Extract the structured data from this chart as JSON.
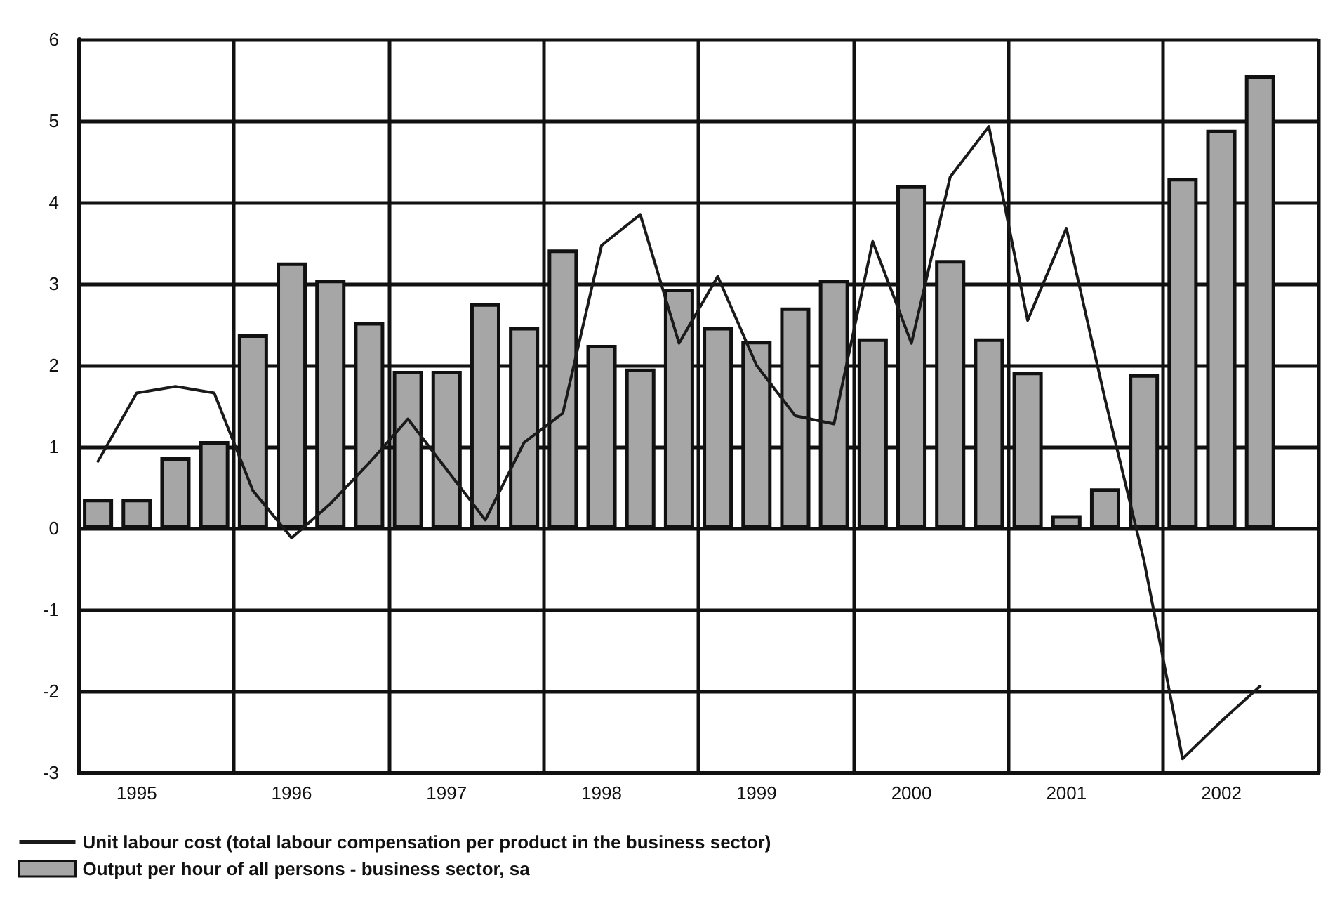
{
  "chart_data": {
    "type": "bar",
    "categories": [
      null,
      "1995",
      null,
      null,
      null,
      "1996",
      null,
      null,
      null,
      "1997",
      null,
      null,
      null,
      "1998",
      null,
      null,
      null,
      "1999",
      null,
      null,
      null,
      "2000",
      null,
      null,
      null,
      "2001",
      null,
      null,
      null,
      "2002",
      null,
      null
    ],
    "series": [
      {
        "type": "line",
        "name": "Unit labour cost (total labour compensation per product in the business sector)",
        "color": "#1a1a1a",
        "values": [
          0.82,
          1.66,
          1.74,
          1.66,
          0.46,
          -0.12,
          0.3,
          0.8,
          1.34,
          0.72,
          0.1,
          1.05,
          1.41,
          3.47,
          3.85,
          2.27,
          3.09,
          2.0,
          1.38,
          1.28,
          3.52,
          2.27,
          4.31,
          4.93,
          2.55,
          3.68,
          1.58,
          -0.39,
          -2.83,
          -2.37,
          -1.94,
          null
        ]
      },
      {
        "name": "Output per hour of all persons - business sector, sa",
        "color": "#a6a6a6",
        "values": [
          0.36,
          0.36,
          0.87,
          1.07,
          2.38,
          3.26,
          3.05,
          2.53,
          1.93,
          1.93,
          2.76,
          2.47,
          3.42,
          2.25,
          1.96,
          2.94,
          2.47,
          2.3,
          2.71,
          3.05,
          2.33,
          4.21,
          3.29,
          2.33,
          1.92,
          0.16,
          0.49,
          1.89,
          4.3,
          4.89,
          5.56,
          null
        ]
      }
    ],
    "ylim": [
      -3,
      6
    ],
    "yticks": [
      -3,
      -2,
      -1,
      0,
      1,
      2,
      3,
      4,
      5,
      6
    ],
    "grid": true,
    "legend": "bottom left",
    "marker": "none",
    "line_style": "solid"
  }
}
